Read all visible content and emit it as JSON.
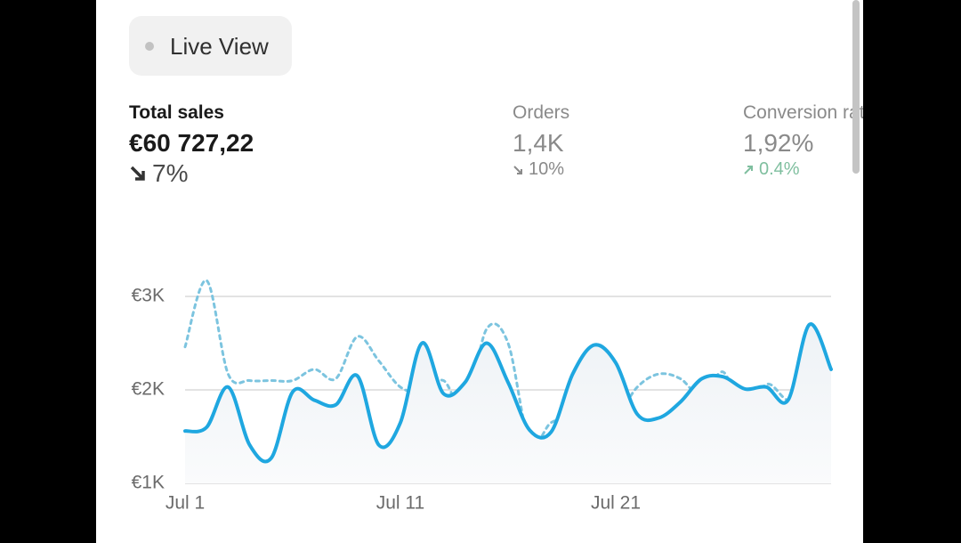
{
  "live_view": "Live View",
  "metrics": [
    {
      "label": "Total sales",
      "value": "€60 727,22",
      "change": "7%"
    },
    {
      "label": "Orders",
      "value": "1,4K",
      "change": "10%"
    },
    {
      "label": "Conversion rate",
      "value": "1,92%",
      "change": "0.4%"
    }
  ],
  "chart_data": {
    "type": "line",
    "x": [
      1,
      2,
      3,
      4,
      5,
      6,
      7,
      8,
      9,
      10,
      11,
      12,
      13,
      14,
      15,
      16,
      17,
      18,
      19,
      20,
      21,
      22,
      23,
      24,
      25,
      26,
      27,
      28,
      29,
      30,
      31
    ],
    "xlim": [
      1,
      31
    ],
    "xticks": [
      {
        "value": 1,
        "label": "Jul 1"
      },
      {
        "value": 11,
        "label": "Jul 11"
      },
      {
        "value": 21,
        "label": "Jul 21"
      }
    ],
    "ylim": [
      1000,
      3000
    ],
    "yticks": [
      {
        "value": 1000,
        "label": "€1K"
      },
      {
        "value": 2000,
        "label": "€2K"
      },
      {
        "value": 3000,
        "label": "€3K"
      }
    ],
    "grid": true,
    "series": [
      {
        "color": "#1fa7e0",
        "style": "solid",
        "values": [
          1560,
          1600,
          2030,
          1410,
          1270,
          1980,
          1890,
          1840,
          2150,
          1410,
          1650,
          2500,
          1960,
          2080,
          2500,
          2080,
          1570,
          1550,
          2170,
          2480,
          2290,
          1740,
          1700,
          1870,
          2120,
          2140,
          2010,
          2030,
          1890,
          2700,
          2220
        ]
      },
      {
        "color": "#7cc4df",
        "style": "dashed",
        "values": [
          2460,
          3170,
          2170,
          2100,
          2100,
          2100,
          2220,
          2120,
          2570,
          2310,
          2030,
          1980,
          2100,
          1790,
          2650,
          2500,
          1440,
          1650,
          1700,
          1600,
          1700,
          2030,
          2170,
          2120,
          1930,
          2190,
          1700,
          2060,
          1890,
          1980,
          2310
        ]
      }
    ]
  }
}
